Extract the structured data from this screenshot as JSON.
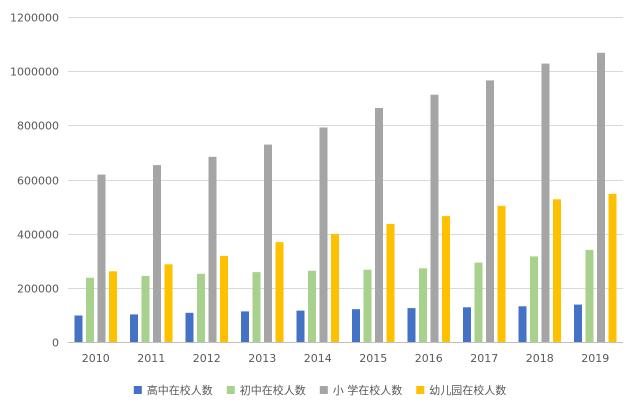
{
  "chart_data": {
    "type": "bar",
    "categories": [
      "2010",
      "2011",
      "2012",
      "2013",
      "2014",
      "2015",
      "2016",
      "2017",
      "2018",
      "2019"
    ],
    "series": [
      {
        "name": "高中在校人数",
        "color": "#4472c4",
        "values": [
          98000,
          102000,
          108000,
          113000,
          116000,
          121000,
          125000,
          128000,
          132000,
          138000
        ]
      },
      {
        "name": "初中在校人数",
        "color": "#a9d18e",
        "values": [
          237000,
          244000,
          252000,
          258000,
          263000,
          267000,
          272000,
          293000,
          316000,
          340000
        ]
      },
      {
        "name": "小 学在校人数",
        "color": "#a5a5a5",
        "values": [
          618000,
          653000,
          684000,
          729000,
          792000,
          864000,
          913000,
          966000,
          1028000,
          1068000
        ]
      },
      {
        "name": "幼儿园在校人数",
        "color": "#ffc000",
        "values": [
          261000,
          287000,
          318000,
          369000,
          399000,
          436000,
          465000,
          503000,
          527000,
          547000
        ]
      }
    ],
    "yticks": [
      "0",
      "200000",
      "400000",
      "600000",
      "800000",
      "1000000",
      "1200000"
    ],
    "ylim": [
      0,
      1200000
    ],
    "grid": true,
    "legend_position": "bottom",
    "title": "",
    "xlabel": "",
    "ylabel": ""
  }
}
